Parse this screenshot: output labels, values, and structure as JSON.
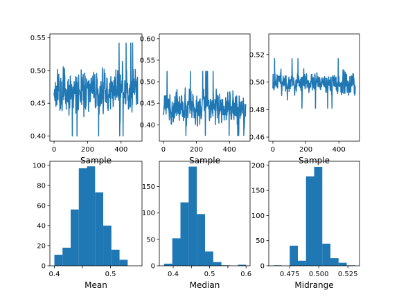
{
  "chart_data": [
    {
      "id": "trace-mean",
      "type": "line",
      "panel": "top-left",
      "xlabel": "Sample",
      "ylabel": "",
      "xlim": [
        -25,
        525
      ],
      "ylim": [
        0.392,
        0.556
      ],
      "xticks": [
        0,
        200,
        400
      ],
      "xtick_labels": [
        "0",
        "200",
        "400"
      ],
      "yticks": [
        0.4,
        0.45,
        0.5,
        0.55
      ],
      "ytick_labels": [
        "0.40",
        "0.45",
        "0.50",
        "0.55"
      ],
      "series": [
        {
          "color": "#1f77b4",
          "n": 500,
          "center": 0.47,
          "spread": 0.024,
          "min": 0.4,
          "max": 0.545,
          "seed": 11
        }
      ]
    },
    {
      "id": "trace-median",
      "type": "line",
      "panel": "top-middle",
      "xlabel": "Sample",
      "ylabel": "",
      "xlim": [
        -25,
        525
      ],
      "ylim": [
        0.362,
        0.611
      ],
      "xticks": [
        0,
        200,
        400
      ],
      "xtick_labels": [
        "0",
        "200",
        "400"
      ],
      "yticks": [
        0.4,
        0.45,
        0.5,
        0.55,
        0.6
      ],
      "ytick_labels": [
        "0.40",
        "0.45",
        "0.50",
        "0.55",
        "0.60"
      ],
      "series": [
        {
          "color": "#1f77b4",
          "n": 500,
          "center": 0.44,
          "spread": 0.028,
          "min": 0.375,
          "max": 0.6,
          "seed": 23
        }
      ]
    },
    {
      "id": "trace-midrange",
      "type": "line",
      "panel": "top-right",
      "xlabel": "Sample",
      "ylabel": "",
      "xlim": [
        -25,
        525
      ],
      "ylim": [
        0.457,
        0.535
      ],
      "xticks": [
        0,
        200,
        400
      ],
      "xtick_labels": [
        "0",
        "200",
        "400"
      ],
      "yticks": [
        0.46,
        0.48,
        0.5,
        0.52
      ],
      "ytick_labels": [
        "0.46",
        "0.48",
        "0.50",
        "0.52"
      ],
      "series": [
        {
          "color": "#1f77b4",
          "n": 500,
          "center": 0.499,
          "spread": 0.006,
          "min": 0.461,
          "max": 0.531,
          "seed": 37
        }
      ]
    },
    {
      "id": "hist-mean",
      "type": "bar",
      "panel": "bottom-left",
      "xlabel": "Mean",
      "ylabel": "",
      "xlim": [
        0.392,
        0.556
      ],
      "ylim": [
        0,
        104
      ],
      "xticks": [
        0.4,
        0.45,
        0.5
      ],
      "xtick_labels": [
        "0.4",
        "",
        "0.5"
      ],
      "yticks": [
        0,
        20,
        40,
        60,
        80,
        100
      ],
      "ytick_labels": [
        "0",
        "20",
        "40",
        "60",
        "80",
        "100"
      ],
      "bin_edges": [
        0.4,
        0.4145,
        0.429,
        0.4435,
        0.458,
        0.4725,
        0.487,
        0.5015,
        0.516,
        0.5305,
        0.545
      ],
      "values": [
        11,
        18,
        56,
        97,
        99,
        73,
        40,
        16,
        6,
        0
      ],
      "color": "#1f77b4"
    },
    {
      "id": "hist-median",
      "type": "bar",
      "panel": "bottom-middle",
      "xlabel": "Median",
      "ylabel": "",
      "xlim": [
        0.362,
        0.611
      ],
      "ylim": [
        0,
        198
      ],
      "xticks": [
        0.4,
        0.45,
        0.5,
        0.55,
        0.6
      ],
      "xtick_labels": [
        "0.4",
        "",
        "0.5",
        "",
        "0.6"
      ],
      "yticks": [
        0,
        50,
        100,
        150
      ],
      "ytick_labels": [
        "0",
        "50",
        "100",
        "150"
      ],
      "bin_edges": [
        0.375,
        0.3975,
        0.42,
        0.4425,
        0.465,
        0.4875,
        0.51,
        0.5325,
        0.555,
        0.5775,
        0.6
      ],
      "values": [
        4,
        52,
        120,
        188,
        98,
        27,
        7,
        1,
        0,
        2
      ],
      "color": "#1f77b4"
    },
    {
      "id": "hist-midrange",
      "type": "bar",
      "panel": "bottom-right",
      "xlabel": "Midrange",
      "ylabel": "",
      "xlim": [
        0.457,
        0.535
      ],
      "ylim": [
        0,
        208
      ],
      "xticks": [
        0.475,
        0.5,
        0.525
      ],
      "xtick_labels": [
        "0.475",
        "0.500",
        "0.525"
      ],
      "yticks": [
        0,
        50,
        100,
        150,
        200
      ],
      "ytick_labels": [
        "0",
        "50",
        "100",
        "150",
        "200"
      ],
      "bin_edges": [
        0.461,
        0.468,
        0.475,
        0.482,
        0.489,
        0.496,
        0.503,
        0.51,
        0.517,
        0.524,
        0.531
      ],
      "values": [
        1,
        0,
        40,
        10,
        178,
        197,
        44,
        15,
        6,
        1
      ],
      "color": "#1f77b4"
    }
  ]
}
